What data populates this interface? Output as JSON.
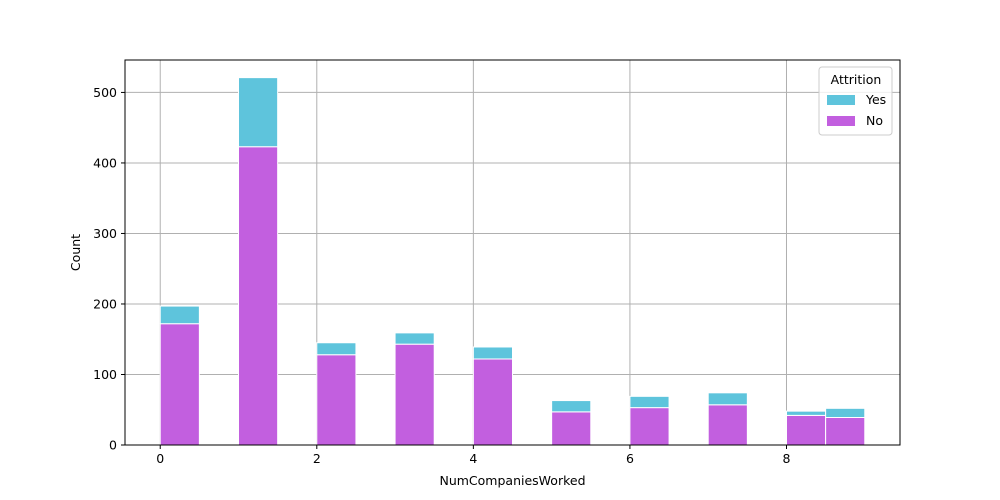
{
  "chart_data": {
    "type": "bar",
    "stacked": true,
    "title": "",
    "xlabel": "NumCompaniesWorked",
    "ylabel": "Count",
    "xlim": [
      -0.45,
      9.45
    ],
    "ylim": [
      0,
      546
    ],
    "x_ticks": [
      0,
      2,
      4,
      6,
      8
    ],
    "y_ticks": [
      0,
      100,
      200,
      300,
      400,
      500
    ],
    "bin_width": 0.5,
    "bins": [
      {
        "x_start": 0.0,
        "x_end": 0.5,
        "no": 172,
        "yes": 25
      },
      {
        "x_start": 1.0,
        "x_end": 1.5,
        "no": 423,
        "yes": 98
      },
      {
        "x_start": 2.0,
        "x_end": 2.5,
        "no": 128,
        "yes": 17
      },
      {
        "x_start": 3.0,
        "x_end": 3.5,
        "no": 143,
        "yes": 16
      },
      {
        "x_start": 4.0,
        "x_end": 4.5,
        "no": 122,
        "yes": 17
      },
      {
        "x_start": 5.0,
        "x_end": 5.5,
        "no": 47,
        "yes": 16
      },
      {
        "x_start": 6.0,
        "x_end": 6.5,
        "no": 53,
        "yes": 16
      },
      {
        "x_start": 7.0,
        "x_end": 7.5,
        "no": 57,
        "yes": 17
      },
      {
        "x_start": 8.0,
        "x_end": 8.5,
        "no": 42,
        "yes": 6
      },
      {
        "x_start": 8.5,
        "x_end": 9.0,
        "no": 39,
        "yes": 13
      }
    ],
    "series": [
      {
        "name": "No",
        "color": "#c25fdf"
      },
      {
        "name": "Yes",
        "color": "#5ec4dc"
      }
    ],
    "legend": {
      "title": "Attrition",
      "entries": [
        "Yes",
        "No"
      ],
      "placement": "top-right"
    },
    "grid": true
  }
}
